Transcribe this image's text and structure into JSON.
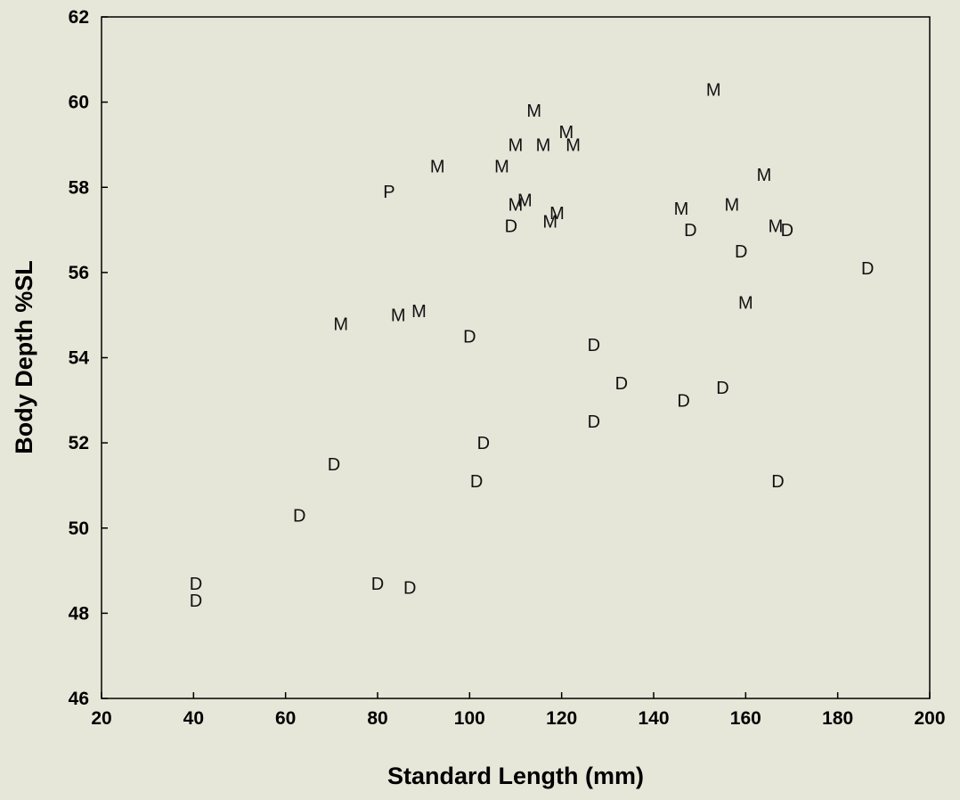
{
  "chart_data": {
    "type": "scatter",
    "title": "",
    "xlabel": "Standard Length (mm)",
    "ylabel": "Body Depth %SL",
    "xlim": [
      20,
      200
    ],
    "ylim": [
      46,
      62
    ],
    "x_ticks": [
      20,
      40,
      60,
      80,
      100,
      120,
      140,
      160,
      180,
      200
    ],
    "y_ticks": [
      46,
      48,
      50,
      52,
      54,
      56,
      58,
      60,
      62
    ],
    "grid": false,
    "legend": "none",
    "marker_style": "letter",
    "colors": {
      "background": "#e7e7d9",
      "plot_area": "#e5e6d8",
      "axis": "#000000",
      "text": "#000000"
    },
    "series": [
      {
        "name": "M",
        "points": [
          [
            153,
            60.3
          ],
          [
            114,
            59.8
          ],
          [
            121,
            59.3
          ],
          [
            110,
            59.0
          ],
          [
            116,
            59.0
          ],
          [
            122.5,
            59.0
          ],
          [
            93,
            58.5
          ],
          [
            107,
            58.5
          ],
          [
            164,
            58.3
          ],
          [
            110,
            57.6
          ],
          [
            112,
            57.7
          ],
          [
            119,
            57.4
          ],
          [
            117.5,
            57.2
          ],
          [
            146,
            57.5
          ],
          [
            157,
            57.6
          ],
          [
            166.5,
            57.1
          ],
          [
            160,
            55.3
          ],
          [
            72,
            54.8
          ],
          [
            84.5,
            55.0
          ],
          [
            89,
            55.1
          ]
        ]
      },
      {
        "name": "D",
        "points": [
          [
            109,
            57.1
          ],
          [
            148,
            57.0
          ],
          [
            169,
            57.0
          ],
          [
            159,
            56.5
          ],
          [
            186.5,
            56.1
          ],
          [
            100,
            54.5
          ],
          [
            127,
            54.3
          ],
          [
            133,
            53.4
          ],
          [
            146.5,
            53.0
          ],
          [
            155,
            53.3
          ],
          [
            127,
            52.5
          ],
          [
            103,
            52.0
          ],
          [
            101.5,
            51.1
          ],
          [
            167,
            51.1
          ],
          [
            70.5,
            51.5
          ],
          [
            63,
            50.3
          ],
          [
            40.5,
            48.7
          ],
          [
            40.5,
            48.3
          ],
          [
            80,
            48.7
          ],
          [
            87,
            48.6
          ]
        ]
      },
      {
        "name": "P",
        "points": [
          [
            82.5,
            57.9
          ]
        ]
      }
    ]
  }
}
